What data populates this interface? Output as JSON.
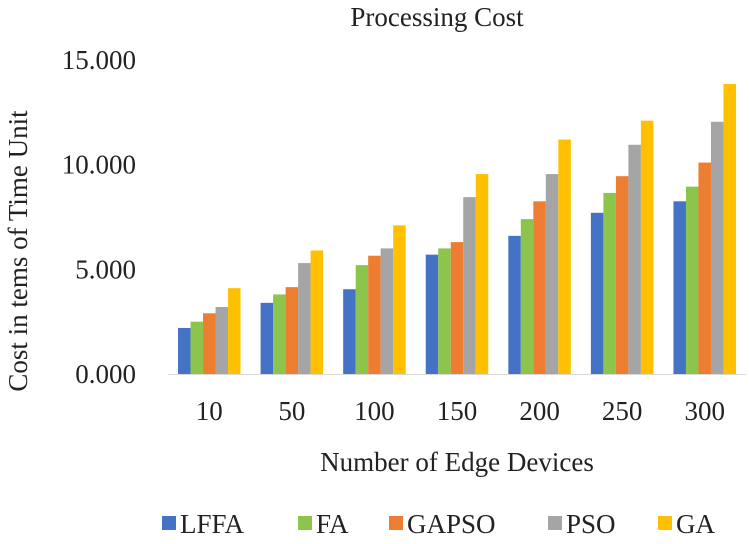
{
  "chart_data": {
    "type": "bar",
    "title": "Processing Cost",
    "xlabel": "Number of Edge Devices",
    "ylabel": "Cost in tems of Time Unit",
    "categories": [
      "10",
      "50",
      "100",
      "150",
      "200",
      "250",
      "300"
    ],
    "y_tick_labels": [
      "0.000",
      "5.000",
      "10.000",
      "15.000"
    ],
    "y_tick_values": [
      0,
      5,
      10,
      15
    ],
    "ylim": [
      0,
      15
    ],
    "grid": false,
    "legend_position": "bottom",
    "series": [
      {
        "name": "LFFA",
        "color": "#4472C4",
        "values": [
          2.2,
          3.4,
          4.05,
          5.7,
          6.6,
          7.7,
          8.25
        ]
      },
      {
        "name": "FA",
        "color": "#8CC44C",
        "values": [
          2.5,
          3.8,
          5.2,
          6.0,
          7.4,
          8.65,
          8.95
        ]
      },
      {
        "name": "GAPSO",
        "color": "#ED7D31",
        "values": [
          2.9,
          4.15,
          5.65,
          6.3,
          8.25,
          9.45,
          10.1
        ]
      },
      {
        "name": "PSO",
        "color": "#A5A5A5",
        "values": [
          3.2,
          5.3,
          6.0,
          8.45,
          9.55,
          10.95,
          12.05
        ]
      },
      {
        "name": "GA",
        "color": "#FFC000",
        "values": [
          4.1,
          5.9,
          7.1,
          9.55,
          11.2,
          12.1,
          13.85
        ]
      }
    ]
  }
}
